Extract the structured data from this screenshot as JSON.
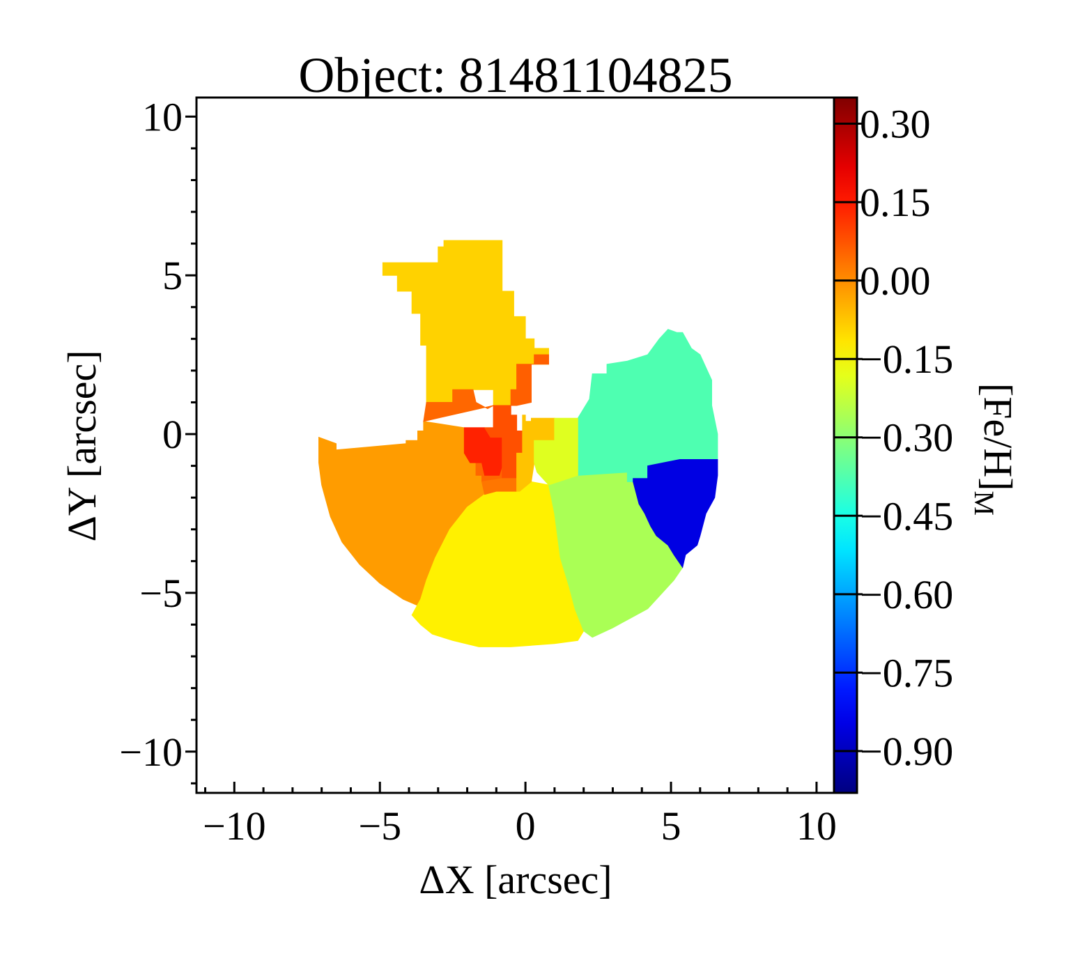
{
  "chart_data": {
    "type": "heatmap",
    "title": "Object: 81481104825",
    "xlabel": "ΔX [arcsec]",
    "ylabel": "ΔY [arcsec]",
    "xlim": [
      -11.3,
      10.6
    ],
    "ylim": [
      -11.3,
      10.6
    ],
    "xticks": [
      {
        "value": -10,
        "label": "−10"
      },
      {
        "value": -5,
        "label": "−5"
      },
      {
        "value": 0,
        "label": "0"
      },
      {
        "value": 5,
        "label": "5"
      },
      {
        "value": 10,
        "label": "10"
      }
    ],
    "yticks": [
      {
        "value": 10,
        "label": "10"
      },
      {
        "value": 5,
        "label": "5"
      },
      {
        "value": 0,
        "label": "0"
      },
      {
        "value": -5,
        "label": "−5"
      },
      {
        "value": -10,
        "label": "−10"
      }
    ],
    "minor_tick_step": 1,
    "colorbar": {
      "label_main": "[Fe/H]",
      "label_sub": "M",
      "colormap": "jet",
      "range": [
        -0.98,
        0.35
      ],
      "ticks": [
        {
          "value": 0.3,
          "label": "0.30"
        },
        {
          "value": 0.15,
          "label": "0.15"
        },
        {
          "value": 0.0,
          "label": "0.00"
        },
        {
          "value": -0.15,
          "label": "−0.15"
        },
        {
          "value": -0.3,
          "label": "−0.30"
        },
        {
          "value": -0.45,
          "label": "−0.45"
        },
        {
          "value": -0.6,
          "label": "−0.60"
        },
        {
          "value": -0.75,
          "label": "−0.75"
        },
        {
          "value": -0.9,
          "label": "−0.90"
        }
      ]
    },
    "regions": [
      {
        "name": "north-spur",
        "value": -0.09,
        "vertices": [
          [
            -4.9,
            5.0
          ],
          [
            -4.9,
            5.4
          ],
          [
            -3.0,
            5.4
          ],
          [
            -3.0,
            5.9
          ],
          [
            -2.8,
            5.9
          ],
          [
            -2.8,
            6.1
          ],
          [
            -0.8,
            6.1
          ],
          [
            -0.8,
            4.5
          ],
          [
            -0.4,
            4.5
          ],
          [
            -0.4,
            3.7
          ],
          [
            0.0,
            3.7
          ],
          [
            0.0,
            3.0
          ],
          [
            0.3,
            3.0
          ],
          [
            0.3,
            2.7
          ],
          [
            0.8,
            2.7
          ],
          [
            0.8,
            2.5
          ],
          [
            0.8,
            2.2
          ],
          [
            -0.3,
            2.2
          ],
          [
            -0.3,
            1.4
          ],
          [
            -0.5,
            1.4
          ],
          [
            -0.5,
            0.9
          ],
          [
            -1.1,
            0.9
          ],
          [
            -1.1,
            1.4
          ],
          [
            -2.5,
            1.4
          ],
          [
            -2.5,
            1.0
          ],
          [
            -3.4,
            1.0
          ],
          [
            -3.4,
            2.8
          ],
          [
            -3.6,
            2.8
          ],
          [
            -3.6,
            3.8
          ],
          [
            -3.9,
            3.8
          ],
          [
            -3.9,
            4.5
          ],
          [
            -4.4,
            4.5
          ],
          [
            -4.4,
            5.0
          ]
        ]
      },
      {
        "name": "west-sector",
        "value": -0.02,
        "vertices": [
          [
            -7.1,
            -0.1
          ],
          [
            -6.5,
            -0.3
          ],
          [
            -6.5,
            -0.5
          ],
          [
            -4.1,
            -0.3
          ],
          [
            -4.1,
            -0.2
          ],
          [
            -3.7,
            -0.2
          ],
          [
            -3.7,
            0.1
          ],
          [
            -3.5,
            0.1
          ],
          [
            -3.5,
            0.4
          ],
          [
            -2.1,
            0.2
          ],
          [
            -2.1,
            -0.6
          ],
          [
            -1.7,
            -0.6
          ],
          [
            -1.7,
            -1.3
          ],
          [
            -1.5,
            -1.3
          ],
          [
            -1.5,
            -1.5
          ],
          [
            -1.4,
            -1.5
          ],
          [
            -1.4,
            -1.9
          ],
          [
            -2.0,
            -2.3
          ],
          [
            -2.6,
            -3.0
          ],
          [
            -3.1,
            -3.9
          ],
          [
            -3.4,
            -4.6
          ],
          [
            -3.6,
            -5.2
          ],
          [
            -3.7,
            -5.4
          ],
          [
            -4.2,
            -5.2
          ],
          [
            -5.0,
            -4.7
          ],
          [
            -5.7,
            -4.1
          ],
          [
            -6.3,
            -3.4
          ],
          [
            -6.7,
            -2.6
          ],
          [
            -7.0,
            -1.6
          ],
          [
            -7.1,
            -0.9
          ]
        ]
      },
      {
        "name": "south-sector",
        "value": -0.13,
        "vertices": [
          [
            -1.4,
            -1.9
          ],
          [
            -1.0,
            -1.8
          ],
          [
            -0.2,
            -1.8
          ],
          [
            0.2,
            -1.5
          ],
          [
            0.8,
            -1.6
          ],
          [
            1.0,
            -2.5
          ],
          [
            1.2,
            -3.9
          ],
          [
            1.5,
            -4.8
          ],
          [
            1.7,
            -5.5
          ],
          [
            2.0,
            -6.2
          ],
          [
            1.8,
            -6.5
          ],
          [
            1.0,
            -6.6
          ],
          [
            -0.5,
            -6.7
          ],
          [
            -1.6,
            -6.7
          ],
          [
            -2.5,
            -6.5
          ],
          [
            -3.2,
            -6.3
          ],
          [
            -3.6,
            -6.0
          ],
          [
            -3.9,
            -5.7
          ],
          [
            -3.6,
            -5.2
          ],
          [
            -3.4,
            -4.6
          ],
          [
            -3.1,
            -3.9
          ],
          [
            -2.6,
            -3.0
          ],
          [
            -2.0,
            -2.3
          ]
        ]
      },
      {
        "name": "southeast-sector",
        "value": -0.26,
        "vertices": [
          [
            0.8,
            -1.6
          ],
          [
            1.8,
            -1.3
          ],
          [
            3.5,
            -1.2
          ],
          [
            3.5,
            -1.5
          ],
          [
            3.7,
            -1.5
          ],
          [
            3.9,
            -2.2
          ],
          [
            4.1,
            -2.5
          ],
          [
            4.3,
            -2.9
          ],
          [
            4.5,
            -3.2
          ],
          [
            4.9,
            -3.5
          ],
          [
            5.1,
            -3.8
          ],
          [
            5.4,
            -4.2
          ],
          [
            5.1,
            -4.6
          ],
          [
            4.6,
            -5.1
          ],
          [
            4.2,
            -5.5
          ],
          [
            3.6,
            -5.8
          ],
          [
            3.0,
            -6.1
          ],
          [
            2.3,
            -6.4
          ],
          [
            2.0,
            -6.2
          ],
          [
            1.7,
            -5.5
          ],
          [
            1.5,
            -4.8
          ],
          [
            1.2,
            -3.9
          ],
          [
            1.0,
            -2.5
          ]
        ]
      },
      {
        "name": "east-sector",
        "value": -0.38,
        "vertices": [
          [
            1.8,
            0.5
          ],
          [
            1.8,
            -1.3
          ],
          [
            3.5,
            -1.2
          ],
          [
            3.5,
            -1.5
          ],
          [
            3.7,
            -1.5
          ],
          [
            3.7,
            -1.4
          ],
          [
            4.2,
            -1.4
          ],
          [
            4.2,
            -1.0
          ],
          [
            5.3,
            -0.8
          ],
          [
            6.3,
            -0.8
          ],
          [
            6.6,
            -0.8
          ],
          [
            6.6,
            0.0
          ],
          [
            6.4,
            0.9
          ],
          [
            6.4,
            1.7
          ],
          [
            6.0,
            2.5
          ],
          [
            5.7,
            2.7
          ],
          [
            5.4,
            3.2
          ],
          [
            5.2,
            3.2
          ],
          [
            4.9,
            3.3
          ],
          [
            4.6,
            3.0
          ],
          [
            4.2,
            2.5
          ],
          [
            3.5,
            2.3
          ],
          [
            2.8,
            2.2
          ],
          [
            2.8,
            1.9
          ],
          [
            2.3,
            1.9
          ],
          [
            2.2,
            1.1
          ]
        ]
      },
      {
        "name": "east-blue-sector",
        "value": -0.85,
        "vertices": [
          [
            4.2,
            -1.4
          ],
          [
            4.2,
            -1.0
          ],
          [
            5.3,
            -0.8
          ],
          [
            6.6,
            -0.8
          ],
          [
            6.6,
            -1.3
          ],
          [
            6.5,
            -2.0
          ],
          [
            6.2,
            -2.5
          ],
          [
            6.0,
            -3.2
          ],
          [
            5.9,
            -3.5
          ],
          [
            5.5,
            -3.8
          ],
          [
            5.4,
            -4.2
          ],
          [
            5.1,
            -3.8
          ],
          [
            4.9,
            -3.5
          ],
          [
            4.5,
            -3.2
          ],
          [
            4.3,
            -2.9
          ],
          [
            4.1,
            -2.5
          ],
          [
            3.9,
            -2.2
          ],
          [
            3.7,
            -1.5
          ],
          [
            3.7,
            -1.4
          ]
        ]
      },
      {
        "name": "center-west-orange",
        "value": 0.05,
        "vertices": [
          [
            -3.5,
            0.4
          ],
          [
            -3.4,
            1.0
          ],
          [
            -2.5,
            1.0
          ],
          [
            -2.5,
            1.4
          ],
          [
            -1.8,
            1.4
          ],
          [
            -1.7,
            1.0
          ],
          [
            -1.3,
            0.8
          ],
          [
            -1.1,
            0.9
          ],
          [
            -1.1,
            0.2
          ],
          [
            -2.1,
            0.2
          ],
          [
            -2.1,
            -0.6
          ],
          [
            -1.7,
            -0.6
          ],
          [
            -1.7,
            -1.3
          ],
          [
            -1.5,
            -1.3
          ],
          [
            -1.5,
            -1.5
          ],
          [
            -0.8,
            -1.4
          ],
          [
            -0.8,
            -0.5
          ],
          [
            -0.6,
            -0.5
          ],
          [
            -0.6,
            0.4
          ],
          [
            -1.1,
            0.4
          ],
          [
            -1.1,
            0.9
          ]
        ]
      },
      {
        "name": "core-red",
        "value": 0.14,
        "vertices": [
          [
            -2.1,
            0.2
          ],
          [
            -1.4,
            0.2
          ],
          [
            -1.2,
            -0.1
          ],
          [
            -0.8,
            -0.1
          ],
          [
            -0.8,
            -1.0
          ],
          [
            -0.9,
            -1.3
          ],
          [
            -1.4,
            -1.3
          ],
          [
            -1.5,
            -0.9
          ],
          [
            -1.9,
            -0.9
          ],
          [
            -2.1,
            -0.6
          ]
        ]
      },
      {
        "name": "core-orange-ring",
        "value": 0.08,
        "vertices": [
          [
            -1.1,
            0.9
          ],
          [
            -0.5,
            0.9
          ],
          [
            -0.5,
            0.6
          ],
          [
            -0.3,
            0.6
          ],
          [
            -0.3,
            0.1
          ],
          [
            -0.1,
            0.1
          ],
          [
            -0.1,
            -0.6
          ],
          [
            -0.3,
            -0.6
          ],
          [
            -0.3,
            -1.4
          ],
          [
            -0.8,
            -1.4
          ],
          [
            -0.8,
            -1.0
          ],
          [
            -0.8,
            -0.1
          ],
          [
            -1.2,
            -0.1
          ],
          [
            -1.4,
            0.2
          ],
          [
            -1.1,
            0.2
          ]
        ]
      },
      {
        "name": "core-south-orange",
        "value": 0.03,
        "vertices": [
          [
            -1.5,
            -1.5
          ],
          [
            -0.8,
            -1.4
          ],
          [
            -0.3,
            -1.4
          ],
          [
            -0.3,
            -1.8
          ],
          [
            -1.0,
            -1.8
          ],
          [
            -1.4,
            -1.9
          ]
        ]
      },
      {
        "name": "north-orange-patch",
        "value": 0.06,
        "vertices": [
          [
            -0.5,
            1.4
          ],
          [
            -0.3,
            1.4
          ],
          [
            -0.3,
            2.2
          ],
          [
            0.3,
            2.2
          ],
          [
            0.3,
            2.5
          ],
          [
            0.8,
            2.5
          ],
          [
            0.8,
            2.2
          ],
          [
            0.2,
            2.2
          ],
          [
            0.2,
            1.0
          ],
          [
            -0.3,
            0.9
          ],
          [
            -0.5,
            0.9
          ]
        ]
      },
      {
        "name": "core-east-yellow",
        "value": -0.07,
        "vertices": [
          [
            -0.1,
            0.1
          ],
          [
            -0.1,
            0.6
          ],
          [
            0.0,
            0.6
          ],
          [
            0.0,
            0.4
          ],
          [
            0.2,
            0.4
          ],
          [
            0.2,
            0.5
          ],
          [
            1.0,
            0.5
          ],
          [
            1.0,
            -0.2
          ],
          [
            0.6,
            -0.3
          ],
          [
            0.3,
            -0.6
          ],
          [
            0.3,
            -0.9
          ],
          [
            0.2,
            -1.5
          ],
          [
            -0.2,
            -1.8
          ],
          [
            -0.3,
            -1.8
          ],
          [
            -0.3,
            -1.4
          ],
          [
            -0.3,
            -0.6
          ],
          [
            -0.1,
            -0.6
          ]
        ]
      },
      {
        "name": "core-east-green",
        "value": -0.19,
        "vertices": [
          [
            0.3,
            -0.2
          ],
          [
            1.0,
            -0.2
          ],
          [
            1.0,
            0.5
          ],
          [
            1.8,
            0.5
          ],
          [
            1.8,
            -1.3
          ],
          [
            0.8,
            -1.6
          ],
          [
            0.4,
            -1.2
          ],
          [
            0.3,
            -0.9
          ],
          [
            0.3,
            -0.6
          ]
        ]
      }
    ]
  }
}
